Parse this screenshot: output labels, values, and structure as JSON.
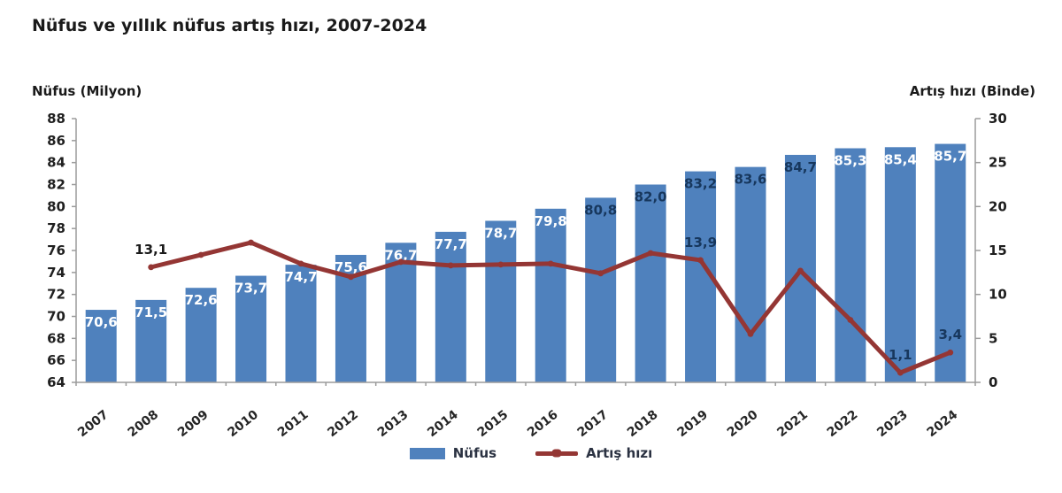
{
  "title": "Nüfus ve yıllık nüfus artış hızı, 2007-2024",
  "left_axis_title": "Nüfus (Milyon)",
  "right_axis_title": "Artış hızı (Binde)",
  "legend": {
    "bar_label": "Nüfus",
    "line_label": "Artış hızı"
  },
  "colors": {
    "bar": "#4F81BD",
    "line": "#943634",
    "bar_label_light": "#FFFFFF",
    "bar_label_dark": "#17375D",
    "annotation": "#17375D",
    "axis": "#9b9b9b",
    "tick_text": "#1f1f1f"
  },
  "chart_data": {
    "type": "bar+line",
    "title": "Nüfus ve yıllık nüfus artış hızı, 2007-2024",
    "categories": [
      "2007",
      "2008",
      "2009",
      "2010",
      "2011",
      "2012",
      "2013",
      "2014",
      "2015",
      "2016",
      "2017",
      "2018",
      "2019",
      "2020",
      "2021",
      "2022",
      "2023",
      "2024"
    ],
    "left_axis": {
      "label": "Nüfus (Milyon)",
      "min": 64,
      "max": 88,
      "step": 2
    },
    "right_axis": {
      "label": "Artış hızı (Binde)",
      "min": 0,
      "max": 30,
      "step": 5
    },
    "grid": false,
    "legend_position": "bottom",
    "series": [
      {
        "name": "Nüfus",
        "type": "bar",
        "axis": "left",
        "values": [
          70.6,
          71.5,
          72.6,
          73.7,
          74.7,
          75.6,
          76.7,
          77.7,
          78.7,
          79.8,
          80.8,
          82.0,
          83.2,
          83.6,
          84.7,
          85.3,
          85.4,
          85.7
        ],
        "labels": [
          "70,6",
          "71,5",
          "72,6",
          "73,7",
          "74,7",
          "75,6",
          "76,7",
          "77,7",
          "78,7",
          "79,8",
          "80,8",
          "82,0",
          "83,2",
          "83,6",
          "84,7",
          "85,3",
          "85,4",
          "85,7"
        ],
        "label_styles": [
          "light",
          "light",
          "light",
          "light",
          "light",
          "light",
          "light",
          "light",
          "light",
          "light",
          "dark",
          "dark",
          "dark",
          "dark",
          "dark",
          "light",
          "light",
          "light"
        ]
      },
      {
        "name": "Artış hızı",
        "type": "line",
        "axis": "right",
        "values": [
          null,
          13.1,
          14.5,
          15.9,
          13.5,
          12.0,
          13.7,
          13.3,
          13.4,
          13.5,
          12.4,
          14.7,
          13.9,
          5.5,
          12.7,
          7.1,
          1.1,
          3.4
        ],
        "annotations": [
          {
            "year": "2008",
            "label": "13,1",
            "color": "#1a1a1a"
          },
          {
            "year": "2019",
            "label": "13,9",
            "color": "#17375D"
          },
          {
            "year": "2023",
            "label": "1,1",
            "color": "#17375D"
          },
          {
            "year": "2024",
            "label": "3,4",
            "color": "#17375D"
          }
        ]
      }
    ]
  }
}
